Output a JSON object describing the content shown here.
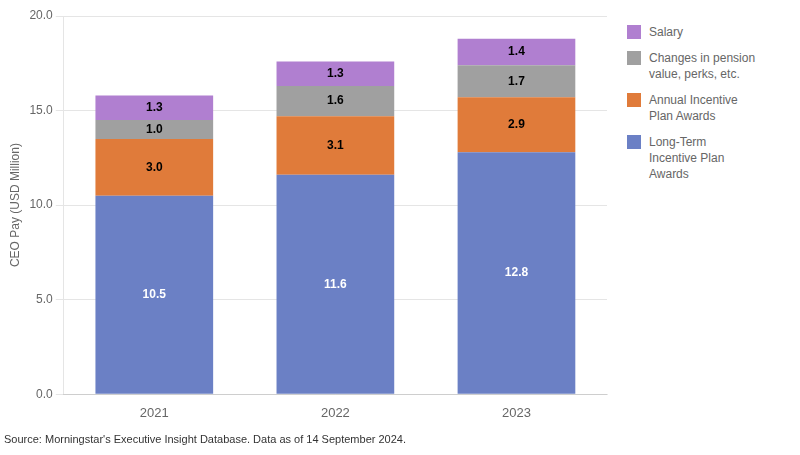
{
  "chart_data": {
    "type": "bar",
    "stacked": true,
    "categories": [
      "2021",
      "2022",
      "2023"
    ],
    "series": [
      {
        "name": "Long-Term\nIncentive Plan\nAwards",
        "color": "#6b80c5",
        "values": [
          10.5,
          11.6,
          12.8
        ],
        "value_labels": [
          "10.5",
          "11.6",
          "12.8"
        ]
      },
      {
        "name": "Annual Incentive\nPlan Awards",
        "color": "#e07b3a",
        "values": [
          3.0,
          3.1,
          2.9
        ],
        "value_labels": [
          "3.0",
          "3.1",
          "2.9"
        ]
      },
      {
        "name": "Changes in pension\nvalue, perks, etc.",
        "color": "#a0a0a0",
        "values": [
          1.0,
          1.6,
          1.7
        ],
        "value_labels": [
          "1.0",
          "1.6",
          "1.7"
        ]
      },
      {
        "name": "Salary",
        "color": "#b07fd0",
        "values": [
          1.3,
          1.3,
          1.4
        ],
        "value_labels": [
          "1.3",
          "1.3",
          "1.4"
        ]
      }
    ],
    "y_label": "CEO Pay (USD Million)",
    "ylim": [
      0,
      20.0
    ],
    "yticks": [
      {
        "value": 0,
        "label": "0.0"
      },
      {
        "value": 5,
        "label": "5.0"
      },
      {
        "value": 10,
        "label": "10.0"
      },
      {
        "value": 15,
        "label": "15.0"
      },
      {
        "value": 20,
        "label": "20.0"
      }
    ],
    "grid": true,
    "legend": "right",
    "data_labels": true,
    "annotation": "Source: Morningstar's Executive Insight Database. Data as of 14 September 2024."
  }
}
